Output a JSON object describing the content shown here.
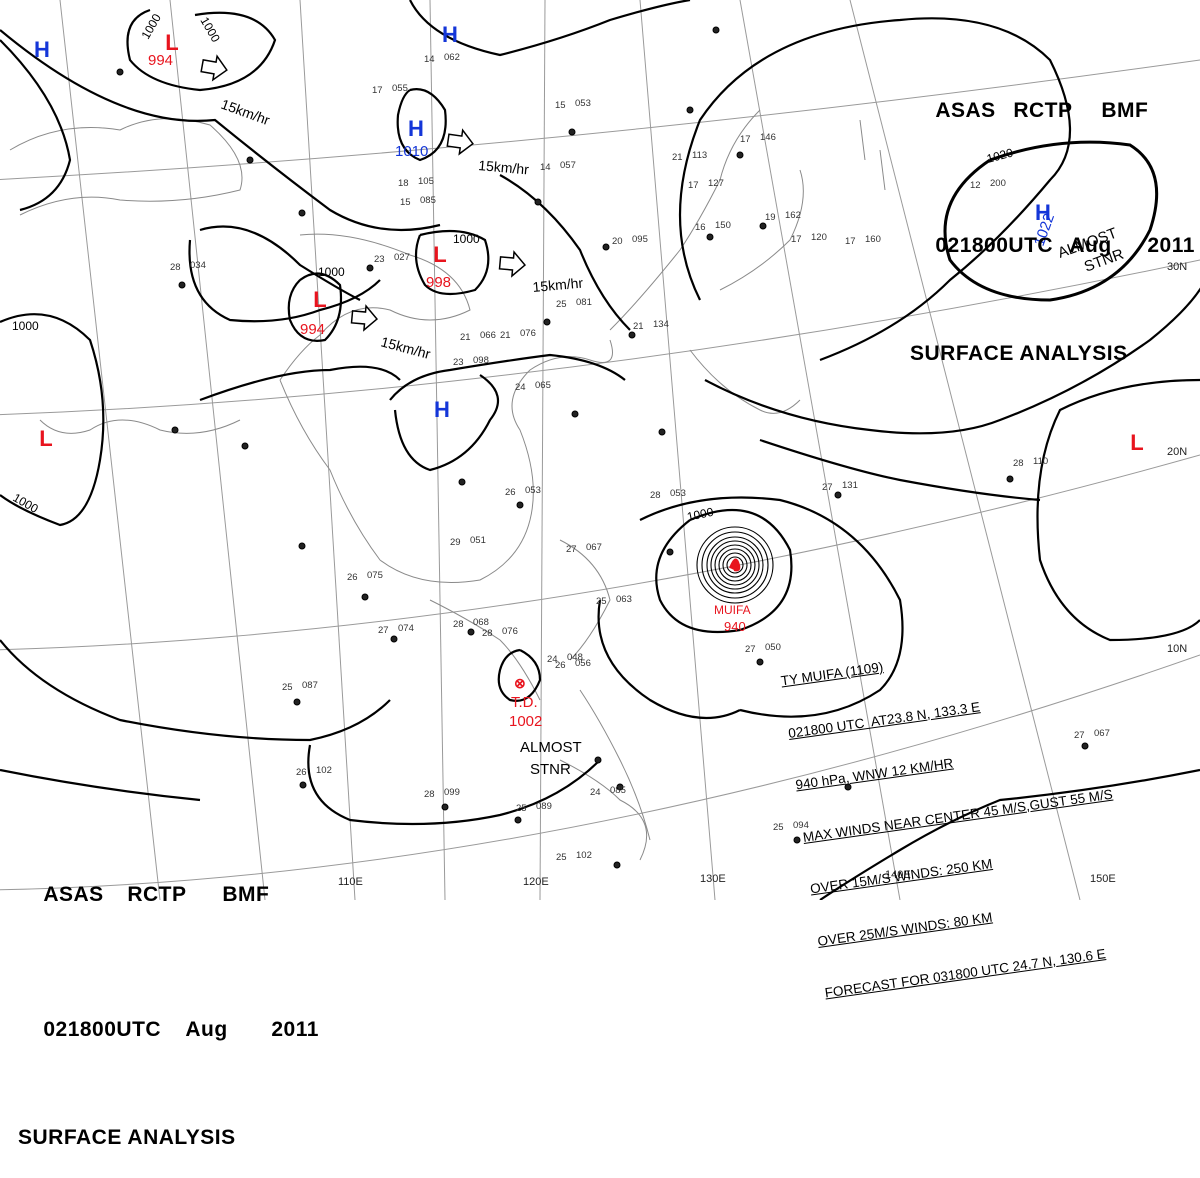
{
  "header": {
    "product": [
      "ASAS",
      "RCTP",
      "BMF"
    ],
    "valid_time": [
      "021800UTC",
      "Aug",
      "2011"
    ],
    "title": "SURFACE ANALYSIS"
  },
  "longitude_labels": [
    "110E",
    "120E",
    "130E",
    "140E",
    "150E"
  ],
  "latitude_labels": [
    "30N",
    "20N",
    "10N"
  ],
  "pressure_centers": [
    {
      "type": "L",
      "value": "994"
    },
    {
      "type": "H",
      "value": ""
    },
    {
      "type": "H",
      "value": ""
    },
    {
      "type": "H",
      "value": "1010"
    },
    {
      "type": "L",
      "value": "994"
    },
    {
      "type": "L",
      "value": "998"
    },
    {
      "type": "H",
      "value": ""
    },
    {
      "type": "L",
      "value": ""
    },
    {
      "type": "H",
      "value": "1022"
    },
    {
      "type": "L",
      "value": ""
    }
  ],
  "system_notes": [
    {
      "text": "ALMOST",
      "text2": "STNR"
    },
    {
      "text": "ALMOST",
      "text2": "STNR"
    }
  ],
  "tropical_depression": {
    "label": "T.D.",
    "value": "1002"
  },
  "typhoon": {
    "name": "MUIFA",
    "pressure": "940",
    "bulletin": [
      "TY MUIFA (1109)",
      "021800 UTC  AT23.8 N, 133.3 E",
      "940 hPa, WNW 12 KM/HR",
      "MAX WINDS NEAR CENTER 45 M/S,GUST 55 M/S",
      "OVER 15M/S WINDS: 250 KM",
      "OVER 25M/S WINDS: 80 KM",
      "FORECAST FOR 031800 UTC 24.7 N, 130.6 E"
    ]
  },
  "motion_labels": [
    "15km/hr",
    "15km/hr",
    "15km/hr",
    "15km/hr"
  ],
  "isobar_labels": [
    "1000",
    "1000",
    "1000",
    "1000",
    "1000",
    "1000",
    "1000",
    "1020"
  ],
  "stations": [
    {
      "t": "15",
      "p": "053"
    },
    {
      "t": "14",
      "p": "057"
    },
    {
      "t": "17",
      "p": "055"
    },
    {
      "t": "14",
      "p": "062"
    },
    {
      "t": "28",
      "p": "034"
    },
    {
      "t": "23",
      "p": "027"
    },
    {
      "t": "25",
      "p": "081"
    },
    {
      "t": "21",
      "p": "076"
    },
    {
      "t": "24",
      "p": "065"
    },
    {
      "t": "26",
      "p": "053"
    },
    {
      "t": "29",
      "p": "051"
    },
    {
      "t": "26",
      "p": "075"
    },
    {
      "t": "27",
      "p": "074"
    },
    {
      "t": "28",
      "p": "068"
    },
    {
      "t": "28",
      "p": "076"
    },
    {
      "t": "25",
      "p": "087"
    },
    {
      "t": "26",
      "p": "102"
    },
    {
      "t": "28",
      "p": "099"
    },
    {
      "t": "25",
      "p": "089"
    },
    {
      "t": "25",
      "p": "102"
    },
    {
      "t": "25",
      "p": "094"
    },
    {
      "t": "27",
      "p": "067"
    },
    {
      "t": "28",
      "p": "110"
    },
    {
      "t": "27",
      "p": "131"
    },
    {
      "t": "20",
      "p": "095"
    },
    {
      "t": "16",
      "p": "150"
    },
    {
      "t": "21",
      "p": "134"
    },
    {
      "t": "17",
      "p": "120"
    },
    {
      "t": "17",
      "p": "160"
    },
    {
      "t": "12",
      "p": "200"
    },
    {
      "t": "27",
      "p": "050"
    },
    {
      "t": "28",
      "p": "053"
    },
    {
      "t": "24",
      "p": "048"
    },
    {
      "t": "26",
      "p": "056"
    },
    {
      "t": "27",
      "p": "067"
    },
    {
      "t": "25",
      "p": "063"
    },
    {
      "t": "24",
      "p": "085"
    },
    {
      "t": "23",
      "p": "098"
    },
    {
      "t": "21",
      "p": "066"
    },
    {
      "t": "15",
      "p": "085"
    },
    {
      "t": "18",
      "p": "105"
    },
    {
      "t": "21",
      "p": "113"
    },
    {
      "t": "17",
      "p": "127"
    },
    {
      "t": "17",
      "p": "146"
    },
    {
      "t": "19",
      "p": "162"
    }
  ],
  "colors": {
    "low": "#e8141e",
    "high": "#1436d8",
    "line": "#000000",
    "coast": "#8a8a8a",
    "grid": "#9a9a9a"
  }
}
